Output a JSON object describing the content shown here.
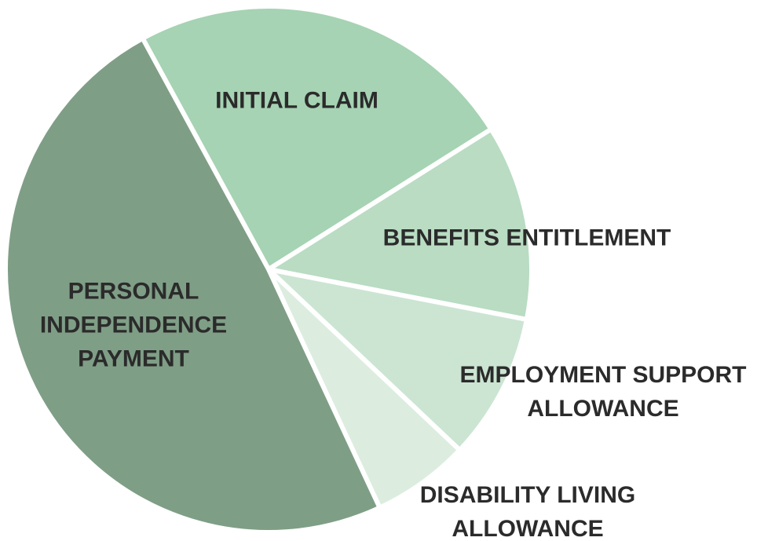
{
  "chart_data": {
    "type": "pie",
    "categories": [
      "INITIAL CLAIM",
      "BENEFITS ENTITLEMENT",
      "EMPLOYMENT SUPPORT ALLOWANCE",
      "DISABILITY LIVING ALLOWANCE",
      "PERSONAL INDEPENDENCE PAYMENT"
    ],
    "values": [
      24,
      12,
      9,
      6,
      49
    ],
    "colors": [
      "#a6d3b3",
      "#b9dcc3",
      "#cbe5d2",
      "#dcede0",
      "#7f9e86"
    ]
  }
}
